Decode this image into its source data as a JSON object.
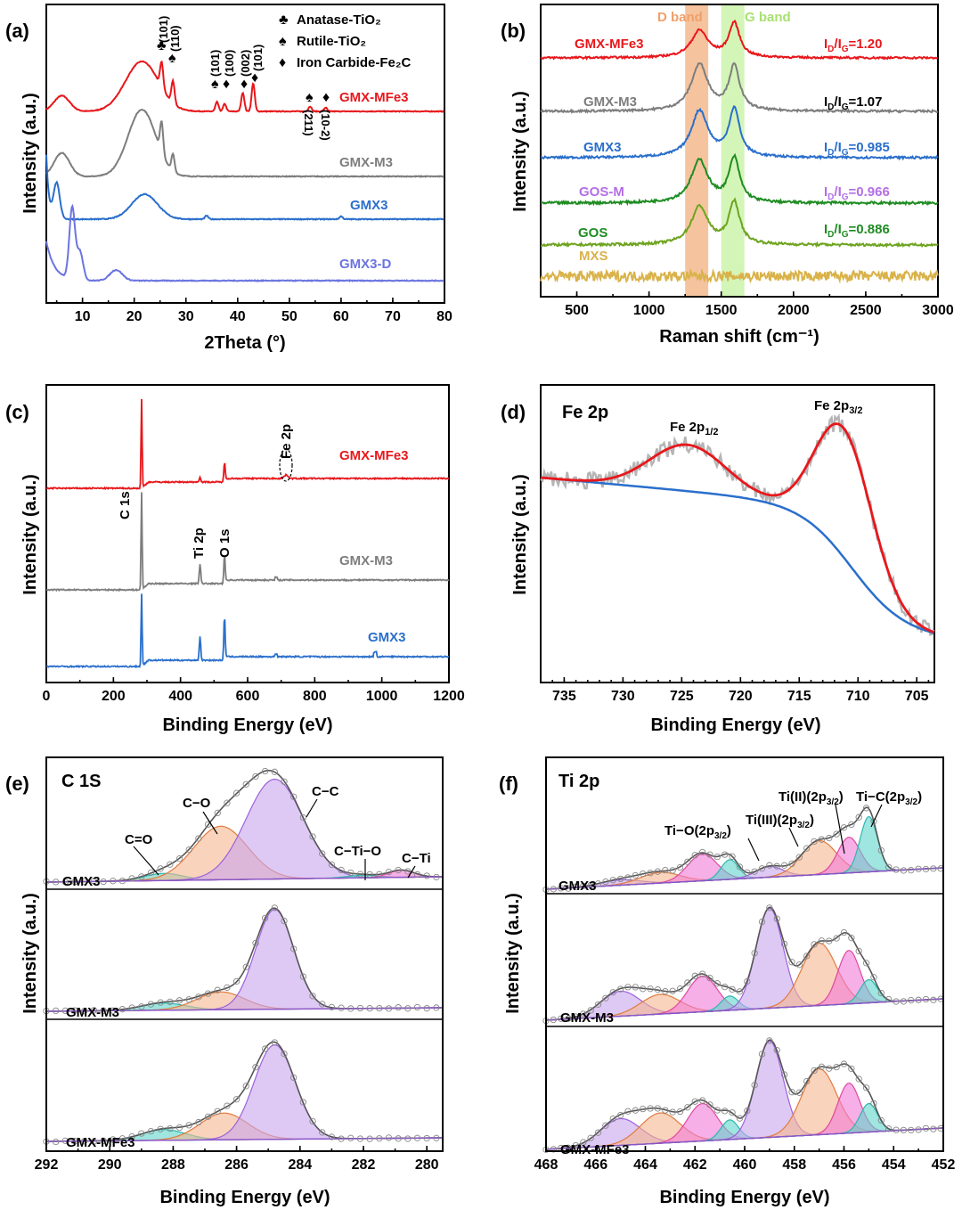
{
  "colors": {
    "red": "#e8171b",
    "gray": "#7d7d7d",
    "blue": "#2a6fcc",
    "lavender": "#6b74e0",
    "purple": "#b46ee6",
    "green": "#1f8c22",
    "olive": "#6ea420",
    "mustard": "#d9b24a",
    "orange_band": "#f3b587",
    "green_band": "#c9f2a6",
    "fill_purple": "#c8a5ef",
    "fill_orange": "#f5b58e",
    "fill_cyan": "#5fd3cc",
    "fill_pink": "#f27ad8"
  },
  "chart_data": [
    {
      "panel": "(a)",
      "type": "line",
      "xlabel": "2Theta (°)",
      "ylabel": "Intensity (a.u.)",
      "xlim": [
        3,
        80
      ],
      "xticks": [
        "10",
        "20",
        "30",
        "40",
        "50",
        "60",
        "70",
        "80"
      ],
      "legend": [
        {
          "symbol": "♣",
          "text": "Anatase-TiO₂"
        },
        {
          "symbol": "♠",
          "text": "Rutile-TiO₂"
        },
        {
          "symbol": "♦",
          "text": "Iron Carbide-Fe₂C"
        }
      ],
      "series": [
        {
          "name": "GMX-MFe3",
          "peaks": [
            [
              6,
              0.25
            ],
            [
              21.5,
              0.8
            ],
            [
              25.3,
              0.4
            ],
            [
              27.5,
              0.35
            ],
            [
              36,
              0.15
            ],
            [
              37.5,
              0.12
            ],
            [
              41,
              0.3
            ],
            [
              43,
              0.45
            ],
            [
              54,
              0.08
            ],
            [
              57,
              0.06
            ]
          ]
        },
        {
          "name": "GMX-M3",
          "peaks": [
            [
              6,
              0.35
            ],
            [
              21.5,
              1.0
            ],
            [
              25.3,
              0.45
            ],
            [
              27.5,
              0.25
            ]
          ]
        },
        {
          "name": "GMX3",
          "peaks": [
            [
              5,
              0.5
            ],
            [
              22,
              0.35
            ],
            [
              34,
              0.05
            ],
            [
              60,
              0.04
            ]
          ]
        },
        {
          "name": "GMX3-D",
          "peaks": [
            [
              8,
              1.0
            ],
            [
              9.5,
              0.4
            ],
            [
              16.5,
              0.15
            ]
          ]
        }
      ],
      "annotations": {
        "anatase": {
          "symbol": "♣",
          "hkl": "(101)"
        },
        "rutile_110": {
          "symbol": "♠",
          "hkl": "(110)"
        },
        "rutile_101": {
          "symbol": "♠",
          "hkl": "(101)"
        },
        "fe2c_100": {
          "symbol": "♦",
          "hkl": "(100)"
        },
        "fe2c_002": {
          "symbol": "♦",
          "hkl": "(002)"
        },
        "fe2c_101": {
          "symbol": "♦",
          "hkl": "(101)"
        },
        "rutile_211": {
          "symbol": "♠",
          "hkl": "(211)"
        },
        "fe2c_102": {
          "symbol": "♦",
          "hkl": "(10-2)"
        }
      }
    },
    {
      "panel": "(b)",
      "type": "line",
      "xlabel": "Raman shift (cm⁻¹)",
      "ylabel": "Intensity (a.u.)",
      "xlim": [
        250,
        3000
      ],
      "xticks": [
        "500",
        "1000",
        "1500",
        "2000",
        "2500",
        "3000"
      ],
      "bands": [
        {
          "name": "D band",
          "range": [
            1250,
            1410
          ]
        },
        {
          "name": "G band",
          "range": [
            1500,
            1660
          ]
        }
      ],
      "series": [
        {
          "name": "GMX-MFe3",
          "ratio_prefix": "I",
          "ratio_mid": "/I",
          "ratio_value": "=1.20"
        },
        {
          "name": "GMX-M3",
          "ratio_prefix": "I",
          "ratio_mid": "/I",
          "ratio_value": "=1.07"
        },
        {
          "name": "GMX3",
          "ratio_prefix": "I",
          "ratio_mid": "/I",
          "ratio_value": "=0.985"
        },
        {
          "name": "GOS-M",
          "ratio_prefix": "I",
          "ratio_mid": "/I",
          "ratio_value": "=0.966"
        },
        {
          "name": "GOS",
          "ratio_prefix": "I",
          "ratio_mid": "/I",
          "ratio_value": "=0.886"
        },
        {
          "name": "MXS"
        }
      ],
      "sub_D": "D",
      "sub_G": "G"
    },
    {
      "panel": "(c)",
      "type": "line",
      "xlabel": "Binding Energy (eV)",
      "ylabel": "Intensity (a.u.)",
      "xlim": [
        0,
        1200
      ],
      "xticks": [
        "0",
        "200",
        "400",
        "600",
        "800",
        "1000",
        "1200"
      ],
      "series": [
        {
          "name": "GMX-MFe3"
        },
        {
          "name": "GMX-M3"
        },
        {
          "name": "GMX3"
        }
      ],
      "peak_labels": {
        "c1s": "C 1s",
        "ti2p": "Ti 2p",
        "o1s": "O 1s",
        "fe2p": "Fe 2p"
      }
    },
    {
      "panel": "(d)",
      "type": "line",
      "title": "Fe 2p",
      "xlabel": "Binding Energy (eV)",
      "ylabel": "Intensity (a.u.)",
      "xlim": [
        737,
        703.5
      ],
      "xticks": [
        "735",
        "730",
        "725",
        "720",
        "715",
        "710",
        "705"
      ],
      "peaks": [
        {
          "name": "Fe 2p",
          "sub": "1/2",
          "center": 724.5
        },
        {
          "name": "Fe 2p",
          "sub": "3/2",
          "center": 711.2
        }
      ]
    },
    {
      "panel": "(e)",
      "type": "line",
      "title": "C 1S",
      "xlabel": "Binding Energy (eV)",
      "ylabel": "Intensity (a.u.)",
      "xlim": [
        292,
        279.5
      ],
      "xticks": [
        "292",
        "290",
        "288",
        "286",
        "284",
        "282",
        "280"
      ],
      "samples": [
        "GMX3",
        "GMX-M3",
        "GMX-MFe3"
      ],
      "components": [
        {
          "name": "C=O",
          "center": 288.3
        },
        {
          "name": "C−O",
          "center": 286.5
        },
        {
          "name": "C−C",
          "center": 284.8
        },
        {
          "name": "C−Ti−O",
          "center": 282.0
        },
        {
          "name": "C−Ti",
          "center": 280.8
        }
      ],
      "labels": {
        "co_double": "C=O",
        "co": "C−O",
        "cc": "C−C",
        "ctio": "C−Ti−O",
        "cti": "C−Ti"
      }
    },
    {
      "panel": "(f)",
      "type": "line",
      "title": "Ti 2p",
      "xlabel": "Binding Energy (eV)",
      "ylabel": "Intensity (a.u.)",
      "xlim": [
        468,
        452
      ],
      "xticks": [
        "468",
        "466",
        "464",
        "462",
        "460",
        "458",
        "456",
        "454",
        "452"
      ],
      "samples": [
        "GMX3",
        "GMX-M3",
        "GMX-MFe3"
      ],
      "components": [
        {
          "name": "Ti−O(2p",
          "sub": "3/2",
          "tail": ")",
          "center": 459.0
        },
        {
          "name": "Ti(III)(2p",
          "sub": "3/2",
          "tail": ")",
          "center": 457.0
        },
        {
          "name": "Ti(II)(2p",
          "sub": "3/2",
          "tail": ")",
          "center": 455.8
        },
        {
          "name": "Ti−C(2p",
          "sub": "3/2",
          "tail": ")",
          "center": 455.0
        }
      ]
    }
  ]
}
